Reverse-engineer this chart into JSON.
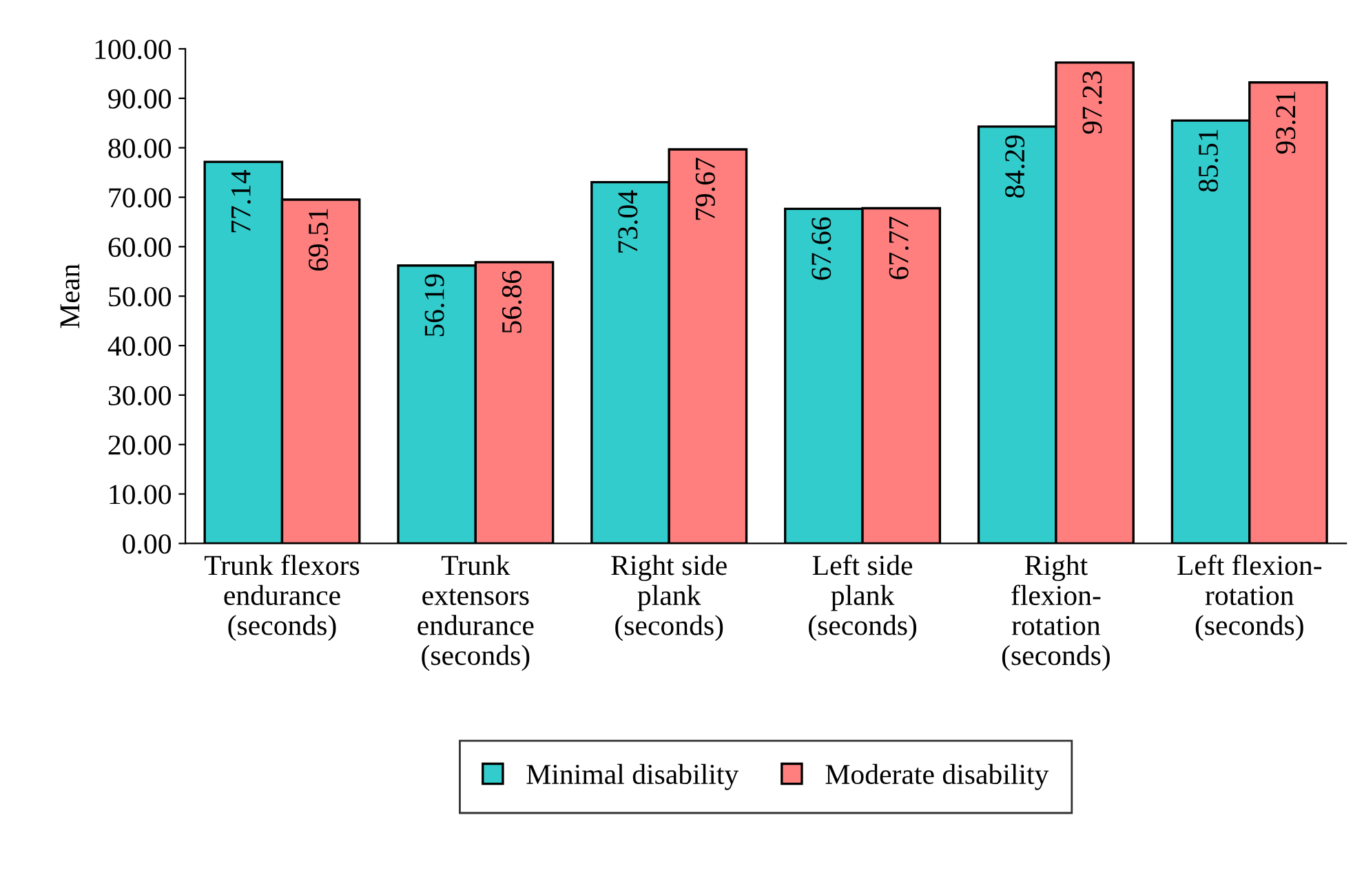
{
  "chart_data": {
    "type": "bar",
    "categories": [
      "Trunk flexors\nendurance\n(seconds)",
      "Trunk\nextensors\nendurance\n(seconds)",
      "Right side\nplank\n(seconds)",
      "Left side\nplank\n(seconds)",
      "Right\nflexion-\nrotation\n(seconds)",
      "Left flexion-\nrotation\n(seconds)"
    ],
    "series": [
      {
        "name": "Minimal disability",
        "color": "#33cccc",
        "values": [
          77.14,
          56.19,
          73.04,
          67.66,
          84.29,
          85.51
        ]
      },
      {
        "name": "Moderate disability",
        "color": "#ff7f7f",
        "values": [
          69.51,
          56.86,
          79.67,
          67.77,
          97.23,
          93.21
        ]
      }
    ],
    "ylabel": "Mean",
    "ylim": [
      0,
      100
    ],
    "yticks": [
      {
        "value": 0,
        "label": "0.00"
      },
      {
        "value": 10,
        "label": "10.00"
      },
      {
        "value": 20,
        "label": "20.00"
      },
      {
        "value": 30,
        "label": "30.00"
      },
      {
        "value": 40,
        "label": "40.00"
      },
      {
        "value": 50,
        "label": "50.00"
      },
      {
        "value": 60,
        "label": "60.00"
      },
      {
        "value": 70,
        "label": "70.00"
      },
      {
        "value": 80,
        "label": "80.00"
      },
      {
        "value": 90,
        "label": "90.00"
      },
      {
        "value": 100,
        "label": "100.00"
      }
    ],
    "data_labels": true,
    "legend": "bottom",
    "grid": false
  }
}
